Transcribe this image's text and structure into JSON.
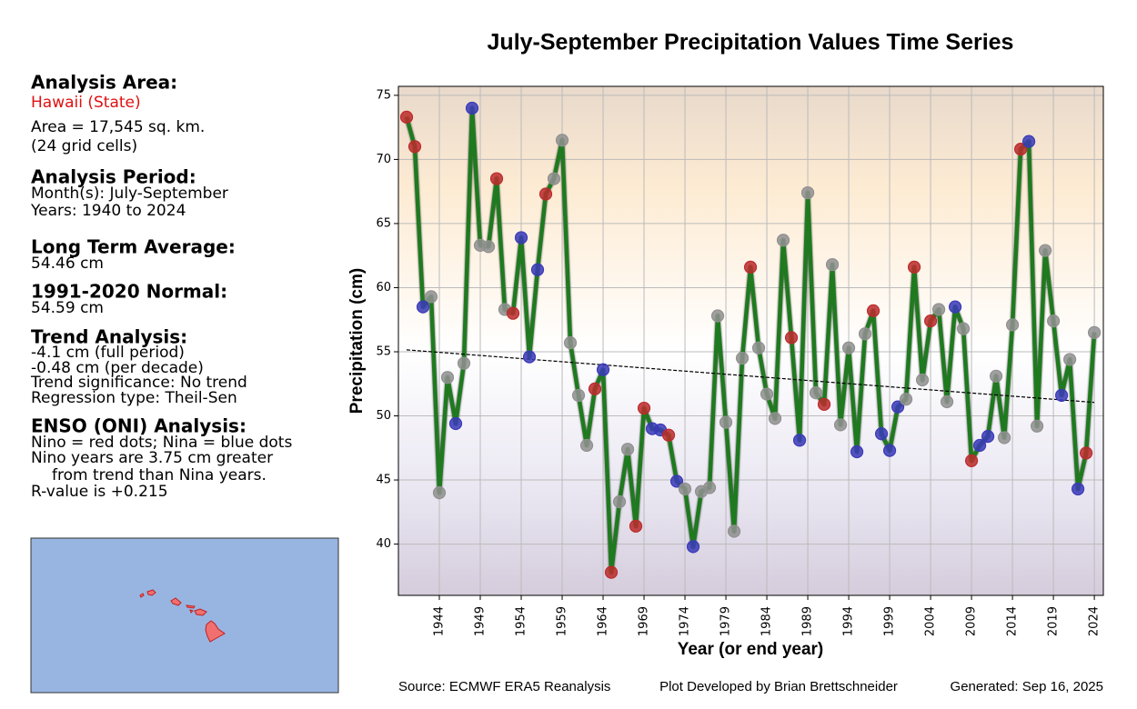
{
  "panel": [
    {
      "heading": "Analysis Area:",
      "lines": [
        "Hawaii (State)",
        "Area = 17,545 sq. km.",
        "(24 grid cells)"
      ]
    },
    {
      "heading": "Analysis Period:",
      "lines": [
        "Month(s): July-September",
        "Years: 1940 to 2024"
      ]
    },
    {
      "heading": "Long Term Average:",
      "lines": [
        "54.46 cm"
      ]
    },
    {
      "heading": "1991-2020 Normal:",
      "lines": [
        "54.59 cm"
      ]
    },
    {
      "heading": "Trend Analysis:",
      "lines": [
        "-4.1 cm (full period)",
        "-0.48 cm (per decade)",
        "Trend significance: No trend",
        "Regression type: Theil-Sen"
      ]
    },
    {
      "heading": "ENSO (ONI) Analysis:",
      "lines": [
        "Nino = red dots; Nina = blue dots",
        "Nino years are 3.75 cm greater",
        "from trend than Nina years.",
        "R-value is +0.215"
      ]
    }
  ],
  "footer": {
    "source": "Source: ECMWF ERA5 Reanalysis",
    "developer": "Plot Developed by Brian Brettschneider",
    "generated": "Generated: Sep 16, 2025"
  },
  "chart_data": {
    "type": "line",
    "title": "July-September Precipitation Values Time Series",
    "x_label": "Year (or end year)",
    "y_label": "Precipitation (cm)",
    "x": [
      1940,
      1941,
      1942,
      1943,
      1944,
      1945,
      1946,
      1947,
      1948,
      1949,
      1950,
      1951,
      1952,
      1953,
      1954,
      1955,
      1956,
      1957,
      1958,
      1959,
      1960,
      1961,
      1962,
      1963,
      1964,
      1965,
      1966,
      1967,
      1968,
      1969,
      1970,
      1971,
      1972,
      1973,
      1974,
      1975,
      1976,
      1977,
      1978,
      1979,
      1980,
      1981,
      1982,
      1983,
      1984,
      1985,
      1986,
      1987,
      1988,
      1989,
      1990,
      1991,
      1992,
      1993,
      1994,
      1995,
      1996,
      1997,
      1998,
      1999,
      2000,
      2001,
      2002,
      2003,
      2004,
      2005,
      2006,
      2007,
      2008,
      2009,
      2010,
      2011,
      2012,
      2013,
      2014,
      2015,
      2016,
      2017,
      2018,
      2019,
      2020,
      2021,
      2022,
      2023,
      2024
    ],
    "series": [
      {
        "color": "#1f7a1f",
        "values": [
          73.3,
          71.0,
          58.5,
          59.3,
          44.0,
          53.0,
          49.4,
          54.1,
          74.0,
          63.3,
          63.2,
          68.5,
          58.3,
          58.0,
          63.9,
          54.6,
          61.4,
          67.3,
          68.5,
          71.5,
          55.7,
          51.6,
          47.7,
          52.1,
          53.6,
          37.8,
          43.3,
          47.4,
          41.4,
          50.6,
          49.0,
          48.9,
          48.5,
          44.9,
          44.3,
          39.8,
          44.1,
          44.4,
          57.8,
          49.5,
          41.0,
          54.5,
          61.6,
          55.3,
          51.7,
          49.8,
          63.7,
          56.1,
          48.1,
          67.4,
          51.8,
          50.9,
          61.8,
          49.3,
          55.3,
          47.2,
          56.4,
          58.2,
          48.6,
          47.3,
          50.7,
          51.3,
          61.6,
          52.8,
          57.4,
          58.3,
          51.1,
          58.5,
          56.8,
          46.5,
          47.7,
          48.4,
          53.1,
          48.3,
          57.1,
          70.8,
          71.4,
          49.2,
          62.9,
          57.4,
          51.6,
          54.4,
          44.3,
          47.1,
          56.5
        ],
        "marker_colors": [
          "#d03030",
          "#d03030",
          "#4040cc",
          "#a0a0a0",
          "#a0a0a0",
          "#a0a0a0",
          "#4040cc",
          "#a0a0a0",
          "#4040cc",
          "#a0a0a0",
          "#a0a0a0",
          "#d03030",
          "#a0a0a0",
          "#d03030",
          "#4040cc",
          "#4040cc",
          "#4040cc",
          "#d03030",
          "#a0a0a0",
          "#a0a0a0",
          "#a0a0a0",
          "#a0a0a0",
          "#a0a0a0",
          "#d03030",
          "#4040cc",
          "#d03030",
          "#a0a0a0",
          "#a0a0a0",
          "#d03030",
          "#d03030",
          "#4040cc",
          "#4040cc",
          "#d03030",
          "#4040cc",
          "#a0a0a0",
          "#4040cc",
          "#a0a0a0",
          "#a0a0a0",
          "#a0a0a0",
          "#a0a0a0",
          "#a0a0a0",
          "#a0a0a0",
          "#d03030",
          "#a0a0a0",
          "#a0a0a0",
          "#a0a0a0",
          "#a0a0a0",
          "#d03030",
          "#4040cc",
          "#a0a0a0",
          "#a0a0a0",
          "#d03030",
          "#a0a0a0",
          "#a0a0a0",
          "#a0a0a0",
          "#4040cc",
          "#a0a0a0",
          "#d03030",
          "#4040cc",
          "#4040cc",
          "#4040cc",
          "#a0a0a0",
          "#d03030",
          "#a0a0a0",
          "#d03030",
          "#a0a0a0",
          "#a0a0a0",
          "#4040cc",
          "#a0a0a0",
          "#d03030",
          "#4040cc",
          "#4040cc",
          "#a0a0a0",
          "#a0a0a0",
          "#a0a0a0",
          "#d03030",
          "#4040cc",
          "#a0a0a0",
          "#a0a0a0",
          "#a0a0a0",
          "#4040cc",
          "#a0a0a0",
          "#4040cc",
          "#d03030",
          "#a0a0a0"
        ]
      }
    ],
    "trend": {
      "x": [
        1940,
        2024
      ],
      "values": [
        55.15,
        51.05
      ],
      "color": "#000000"
    },
    "xlim": [
      1939,
      2025.1
    ],
    "ylim": [
      36,
      75.7
    ],
    "xticks": [
      1944,
      1949,
      1954,
      1959,
      1964,
      1969,
      1974,
      1979,
      1984,
      1989,
      1994,
      1999,
      2004,
      2009,
      2014,
      2019,
      2024
    ],
    "yticks": [
      40,
      45,
      50,
      55,
      60,
      65,
      70,
      75
    ],
    "grid": true
  }
}
